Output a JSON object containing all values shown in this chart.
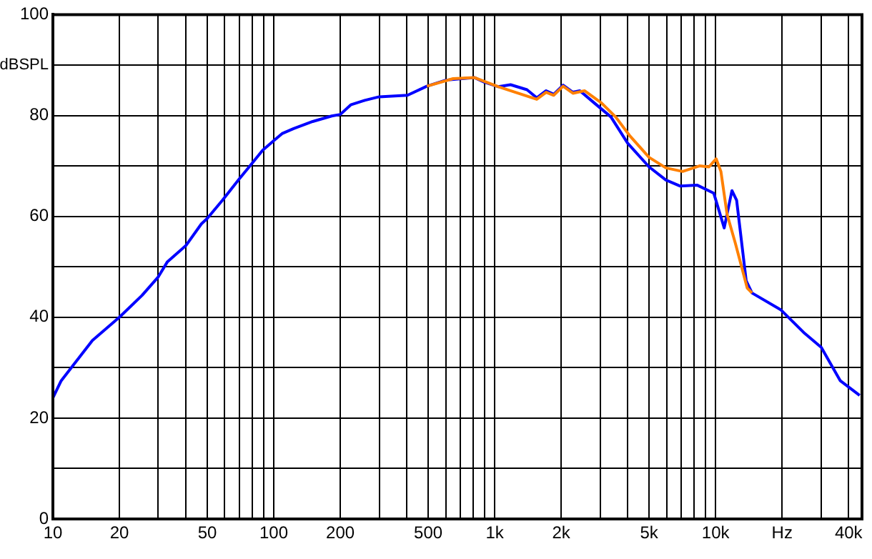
{
  "chart_data": {
    "type": "line",
    "ylabel": "dBSPL",
    "log": "x",
    "grid": true,
    "legend": false,
    "marker": "none",
    "line_style": "solid",
    "xlim": [
      10,
      46000
    ],
    "ylim": [
      0,
      100
    ],
    "xticks": [
      10,
      20,
      {
        "value": 30,
        "label": null
      },
      {
        "value": 40,
        "label": null
      },
      50,
      {
        "value": 60,
        "label": null
      },
      {
        "value": 70,
        "label": null
      },
      {
        "value": 80,
        "label": null
      },
      {
        "value": 90,
        "label": null
      },
      100,
      200,
      {
        "value": 300,
        "label": null
      },
      {
        "value": 400,
        "label": null
      },
      500,
      {
        "value": 600,
        "label": null
      },
      {
        "value": 700,
        "label": null
      },
      {
        "value": 800,
        "label": null
      },
      {
        "value": 900,
        "label": null
      },
      {
        "value": 1000,
        "label": "1k"
      },
      {
        "value": 2000,
        "label": "2k"
      },
      {
        "value": 3000,
        "label": null
      },
      {
        "value": 4000,
        "label": null
      },
      {
        "value": 5000,
        "label": "5k"
      },
      {
        "value": 6000,
        "label": null
      },
      {
        "value": 7000,
        "label": null
      },
      {
        "value": 8000,
        "label": null
      },
      {
        "value": 9000,
        "label": null
      },
      {
        "value": 10000,
        "label": "10k"
      },
      {
        "value": 20000,
        "label": "Hz"
      },
      {
        "value": 30000,
        "label": null
      },
      {
        "value": 40000,
        "label": "40k"
      }
    ],
    "yticks": [
      0,
      {
        "value": 10,
        "label": null
      },
      20,
      {
        "value": 30,
        "label": null
      },
      40,
      {
        "value": 50,
        "label": null
      },
      60,
      {
        "value": 70,
        "label": null
      },
      80,
      {
        "value": 90,
        "label": null
      },
      100
    ],
    "series": [
      {
        "color": "#ff8000",
        "x": [
          493,
          648,
          811,
          1040,
          1550,
          1710,
          1850,
          2040,
          2260,
          2550,
          3040,
          3530,
          4100,
          5000,
          5960,
          7090,
          8450,
          9330,
          10060,
          10570,
          11270,
          12280,
          13900,
          14620
        ],
        "values": [
          85.8,
          87.3,
          87.5,
          85.7,
          83.2,
          84.6,
          84.0,
          85.8,
          84.4,
          84.9,
          82.5,
          79.7,
          75.9,
          71.7,
          69.6,
          68.9,
          70.0,
          69.8,
          71.4,
          68.9,
          60.4,
          54.7,
          45.8,
          44.8
        ]
      },
      {
        "color": "#0000ff",
        "x": [
          10,
          10.9,
          15.1,
          20,
          25.3,
          30,
          33,
          40,
          47,
          50,
          58.6,
          70,
          79,
          89,
          100,
          109,
          123,
          150,
          183,
          200,
          223,
          258,
          300,
          403,
          493,
          601,
          811,
          897,
          1040,
          1180,
          1400,
          1550,
          1710,
          1850,
          2040,
          2260,
          2430,
          2820,
          3360,
          4000,
          5000,
          5960,
          6920,
          8240,
          9810,
          10940,
          11860,
          12450,
          13760,
          14620,
          19700,
          25300,
          30100,
          36700,
          44900
        ],
        "values": [
          24,
          27.4,
          35.4,
          40,
          44.3,
          48,
          51,
          54.2,
          58.5,
          59.6,
          63.2,
          67.5,
          70.3,
          73.1,
          75,
          76.4,
          77.4,
          78.8,
          79.9,
          80.2,
          82.1,
          83,
          83.7,
          84,
          85.8,
          87.0,
          87.5,
          86.6,
          85.7,
          86.1,
          85.1,
          83.5,
          84.9,
          84.2,
          86.0,
          84.6,
          84.9,
          82.5,
          79.7,
          74.5,
          69.8,
          67.2,
          66.0,
          66.2,
          64.6,
          57.7,
          65.1,
          63.2,
          47.2,
          44.8,
          41.5,
          36.8,
          34.0,
          27.4,
          24.5
        ]
      }
    ]
  }
}
